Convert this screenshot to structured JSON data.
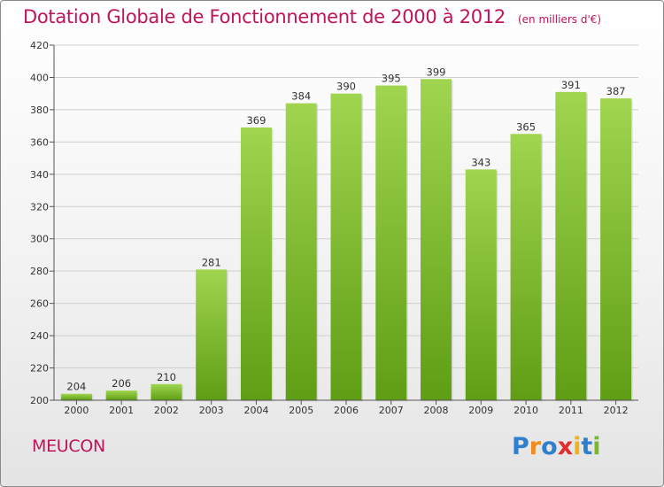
{
  "header": {
    "title": "Dotation Globale de Fonctionnement de 2000 à 2012",
    "unit": "(en milliers d'€)"
  },
  "place": "MEUCON",
  "logo": {
    "text": "Proxiti",
    "letters": [
      {
        "ch": "P",
        "color": "#2f7fd0"
      },
      {
        "ch": "r",
        "color": "#f08a1a"
      },
      {
        "ch": "o",
        "color": "#2f7fd0"
      },
      {
        "ch": "x",
        "color": "#e52b2b"
      },
      {
        "ch": "i",
        "color": "#f0b21a"
      },
      {
        "ch": "t",
        "color": "#2f7fd0"
      },
      {
        "ch": "i",
        "color": "#7ab829"
      }
    ]
  },
  "colors": {
    "title": "#c0145a",
    "bar_top": "#a0d54f",
    "bar_bottom": "#5f9e14",
    "grid": "#cfcfcf",
    "axis_text": "#333333"
  },
  "chart_data": {
    "type": "bar",
    "categories": [
      "2000",
      "2001",
      "2002",
      "2003",
      "2004",
      "2005",
      "2006",
      "2007",
      "2008",
      "2009",
      "2010",
      "2011",
      "2012"
    ],
    "values": [
      204,
      206,
      210,
      281,
      369,
      384,
      390,
      395,
      399,
      343,
      365,
      391,
      387
    ],
    "ylim": [
      200,
      420
    ],
    "yticks": [
      200,
      220,
      240,
      260,
      280,
      300,
      320,
      340,
      360,
      380,
      400,
      420
    ],
    "title": "Dotation Globale de Fonctionnement de 2000 à 2012",
    "ylabel": "(en milliers d'€)",
    "xlabel": "",
    "grid": true,
    "data_labels": true
  }
}
